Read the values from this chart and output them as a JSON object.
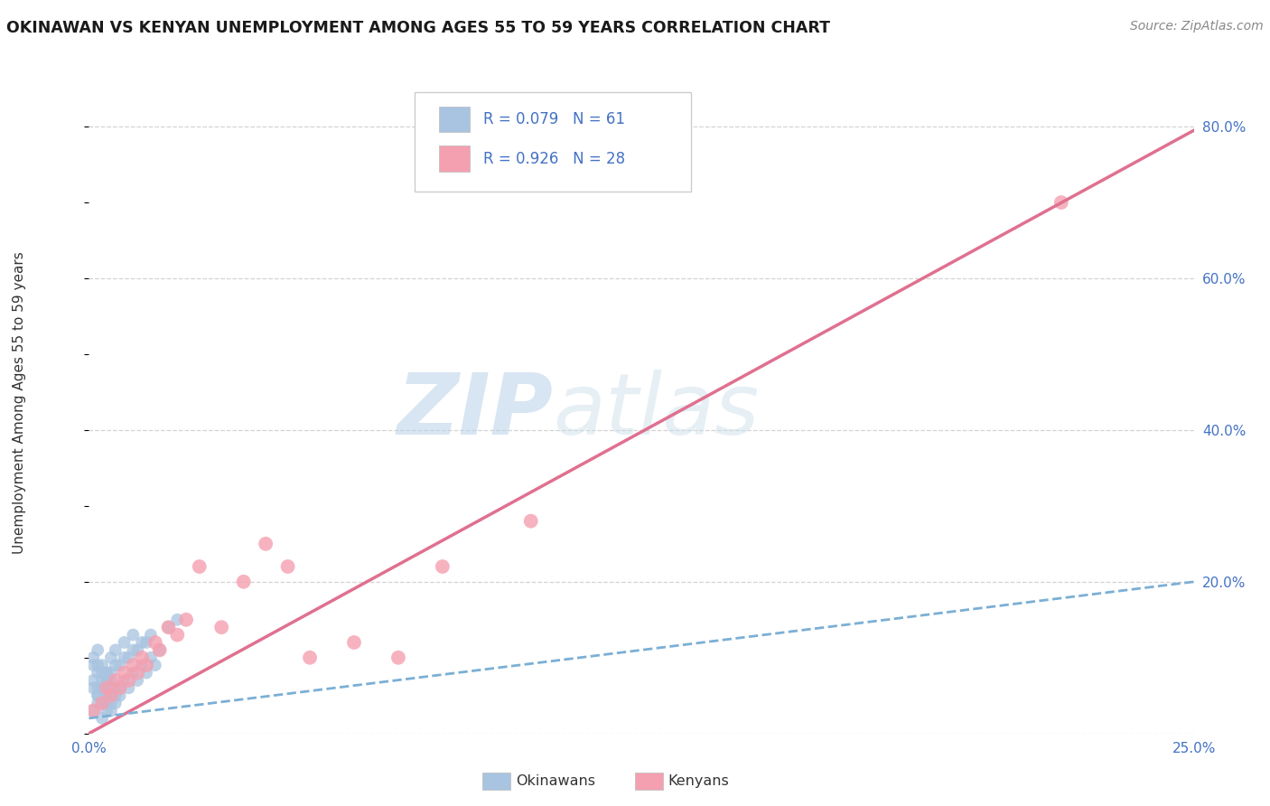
{
  "title": "OKINAWAN VS KENYAN UNEMPLOYMENT AMONG AGES 55 TO 59 YEARS CORRELATION CHART",
  "source": "Source: ZipAtlas.com",
  "ylabel": "Unemployment Among Ages 55 to 59 years",
  "xlim": [
    0.0,
    0.25
  ],
  "ylim": [
    0.0,
    0.85
  ],
  "x_ticks": [
    0.0,
    0.05,
    0.1,
    0.15,
    0.2,
    0.25
  ],
  "x_tick_labels": [
    "0.0%",
    "",
    "",
    "",
    "",
    "25.0%"
  ],
  "y_ticks_right": [
    0.0,
    0.2,
    0.4,
    0.6,
    0.8
  ],
  "y_tick_labels_right": [
    "",
    "20.0%",
    "40.0%",
    "60.0%",
    "80.0%"
  ],
  "background_color": "#ffffff",
  "grid_color": "#c8c8c8",
  "okinawan_R": 0.079,
  "okinawan_N": 61,
  "kenyan_R": 0.926,
  "kenyan_N": 28,
  "okinawan_color": "#a8c4e0",
  "kenyan_color": "#f4a0b0",
  "okinawan_line_color": "#7bafd4",
  "kenyan_line_color": "#e07090",
  "legend_okinawan_label": "Okinawans",
  "legend_kenyan_label": "Kenyans",
  "okinawan_x": [
    0.001,
    0.002,
    0.001,
    0.003,
    0.002,
    0.004,
    0.003,
    0.001,
    0.002,
    0.003,
    0.004,
    0.005,
    0.003,
    0.004,
    0.002,
    0.001,
    0.005,
    0.006,
    0.004,
    0.003,
    0.002,
    0.003,
    0.004,
    0.005,
    0.001,
    0.002,
    0.006,
    0.007,
    0.005,
    0.004,
    0.003,
    0.002,
    0.004,
    0.005,
    0.006,
    0.007,
    0.008,
    0.006,
    0.005,
    0.004,
    0.009,
    0.01,
    0.008,
    0.007,
    0.006,
    0.011,
    0.012,
    0.01,
    0.009,
    0.008,
    0.013,
    0.014,
    0.012,
    0.011,
    0.01,
    0.015,
    0.016,
    0.014,
    0.013,
    0.018,
    0.02
  ],
  "okinawan_y": [
    0.03,
    0.04,
    0.06,
    0.02,
    0.05,
    0.03,
    0.04,
    0.07,
    0.05,
    0.06,
    0.04,
    0.03,
    0.08,
    0.05,
    0.06,
    0.09,
    0.04,
    0.05,
    0.07,
    0.06,
    0.08,
    0.07,
    0.06,
    0.05,
    0.1,
    0.09,
    0.04,
    0.06,
    0.08,
    0.07,
    0.09,
    0.11,
    0.08,
    0.07,
    0.06,
    0.05,
    0.07,
    0.09,
    0.1,
    0.08,
    0.06,
    0.08,
    0.1,
    0.09,
    0.11,
    0.07,
    0.09,
    0.11,
    0.1,
    0.12,
    0.08,
    0.1,
    0.12,
    0.11,
    0.13,
    0.09,
    0.11,
    0.13,
    0.12,
    0.14,
    0.15
  ],
  "kenyan_x": [
    0.001,
    0.003,
    0.004,
    0.005,
    0.006,
    0.007,
    0.008,
    0.009,
    0.01,
    0.011,
    0.012,
    0.013,
    0.015,
    0.016,
    0.018,
    0.02,
    0.022,
    0.025,
    0.03,
    0.035,
    0.04,
    0.045,
    0.05,
    0.06,
    0.07,
    0.08,
    0.1,
    0.22
  ],
  "kenyan_y": [
    0.03,
    0.04,
    0.06,
    0.05,
    0.07,
    0.06,
    0.08,
    0.07,
    0.09,
    0.08,
    0.1,
    0.09,
    0.12,
    0.11,
    0.14,
    0.13,
    0.15,
    0.22,
    0.14,
    0.2,
    0.25,
    0.22,
    0.1,
    0.12,
    0.1,
    0.22,
    0.28,
    0.7
  ],
  "okinawan_trend_x": [
    0.0,
    0.25
  ],
  "okinawan_trend_y": [
    0.02,
    0.2
  ],
  "kenyan_trend_x": [
    0.0,
    0.25
  ],
  "kenyan_trend_y": [
    0.0,
    0.795
  ]
}
